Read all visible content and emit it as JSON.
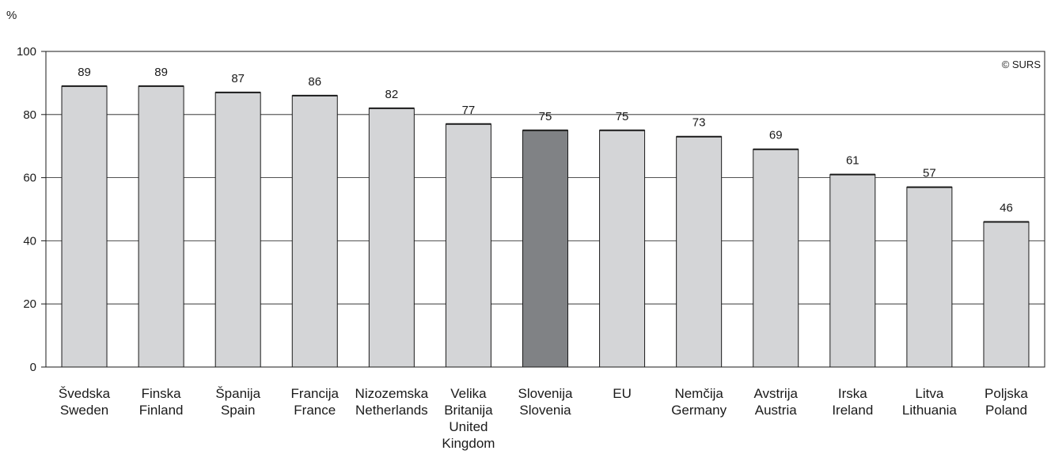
{
  "chart_data": {
    "type": "bar",
    "unit_label": "%",
    "copyright": "© SURS",
    "ylim": [
      0,
      100
    ],
    "yticks": [
      0,
      20,
      40,
      60,
      80,
      100
    ],
    "grid": true,
    "categories": [
      [
        "Švedska",
        "Sweden"
      ],
      [
        "Finska",
        "Finland"
      ],
      [
        "Španija",
        "Spain"
      ],
      [
        "Francija",
        "France"
      ],
      [
        "Nizozemska",
        "Netherlands"
      ],
      [
        "Velika",
        "Britanija",
        "United",
        "Kingdom"
      ],
      [
        "Slovenija",
        "Slovenia"
      ],
      [
        "EU"
      ],
      [
        "Nemčija",
        "Germany"
      ],
      [
        "Avstrija",
        "Austria"
      ],
      [
        "Irska",
        "Ireland"
      ],
      [
        "Litva",
        "Lithuania"
      ],
      [
        "Poljska",
        "Poland"
      ]
    ],
    "values": [
      89,
      89,
      87,
      86,
      82,
      77,
      75,
      75,
      73,
      69,
      61,
      57,
      46
    ],
    "highlight_index": 6,
    "colors": {
      "bar": "#d4d5d7",
      "highlight": "#808285",
      "stroke": "#1a1a1a",
      "grid": "#1a1a1a"
    }
  }
}
